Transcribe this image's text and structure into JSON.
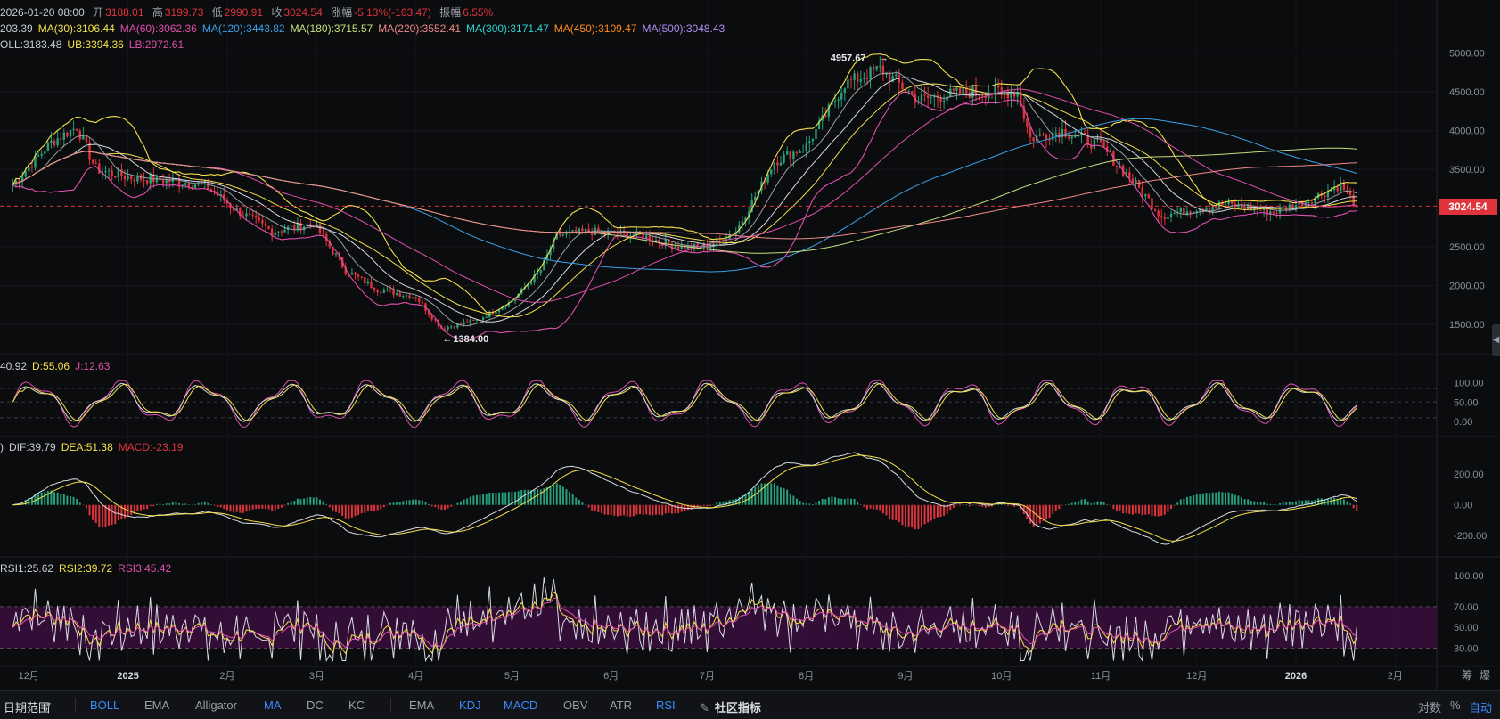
{
  "header": {
    "date": "2026-01-20 08:00",
    "open_label": "开",
    "open": "3188.01",
    "high_label": "高",
    "high": "3199.73",
    "low_label": "低",
    "low": "2990.91",
    "close_label": "收",
    "close": "3024.54",
    "change_label": "涨幅",
    "change": "-5.13%(-163.47)",
    "amp_label": "振幅",
    "amp": "6.55%"
  },
  "ma_legend": [
    {
      "text": "203.39",
      "color": "#c9ccd1"
    },
    {
      "text": "MA(30):3106.44",
      "color": "#f5e14b"
    },
    {
      "text": "MA(60):3062.36",
      "color": "#e04fae"
    },
    {
      "text": "MA(120):3443.82",
      "color": "#3aa0e8"
    },
    {
      "text": "MA(180):3715.57",
      "color": "#c8e07a"
    },
    {
      "text": "MA(220):3552.41",
      "color": "#f08a8a"
    },
    {
      "text": "MA(300):3171.47",
      "color": "#2ed3d3"
    },
    {
      "text": "MA(450):3109.47",
      "color": "#ff8c1a"
    },
    {
      "text": "MA(500):3048.43",
      "color": "#b48cf0"
    }
  ],
  "boll_legend": [
    {
      "text": "OLL:3183.48",
      "color": "#c9ccd1"
    },
    {
      "text": "UB:3394.36",
      "color": "#f5e14b"
    },
    {
      "text": "LB:2972.61",
      "color": "#e04fae"
    }
  ],
  "kdj_legend": [
    {
      "text": "40.92",
      "color": "#c9ccd1"
    },
    {
      "text": "D:55.06",
      "color": "#f5e14b"
    },
    {
      "text": "J:12.63",
      "color": "#e04fae"
    }
  ],
  "macd_legend": [
    {
      "text": ")",
      "color": "#c9ccd1"
    },
    {
      "text": "DIF:39.79",
      "color": "#c9ccd1"
    },
    {
      "text": "DEA:51.38",
      "color": "#f5e14b"
    },
    {
      "text": "MACD:-23.19",
      "color": "#e0343c"
    }
  ],
  "rsi_legend": [
    {
      "text": "RSI1:25.62",
      "color": "#c9ccd1"
    },
    {
      "text": "RSI2:39.72",
      "color": "#f5e14b"
    },
    {
      "text": "RSI3:45.42",
      "color": "#e04fae"
    }
  ],
  "last_price_tag": "3024.54",
  "annotations": {
    "high": "4957.67",
    "low": "1384.00"
  },
  "x_axis_labels": [
    "12月",
    "2025",
    "2月",
    "3月",
    "4月",
    "5月",
    "6月",
    "7月",
    "8月",
    "9月",
    "10月",
    "11月",
    "12月",
    "2026",
    "2月"
  ],
  "price_ticks": [
    "5000.00",
    "4500.00",
    "4000.00",
    "3500.00",
    "2500.00",
    "2000.00",
    "1500.00"
  ],
  "kdj_ticks": [
    "100.00",
    "50.00",
    "0.00"
  ],
  "macd_ticks": [
    "200.00",
    "0.00",
    "-200.00"
  ],
  "rsi_ticks": [
    "100.00",
    "70.00",
    "50.00",
    "30.00"
  ],
  "toolbar": {
    "range_label": "日期范围",
    "left_items": [
      {
        "label": "BOLL",
        "active": true
      },
      {
        "label": "EMA",
        "active": false
      },
      {
        "label": "Alligator",
        "active": false
      },
      {
        "label": "MA",
        "active": true
      },
      {
        "label": "DC",
        "active": false
      },
      {
        "label": "KC",
        "active": false
      }
    ],
    "right_items": [
      {
        "label": "EMA",
        "active": false
      },
      {
        "label": "KDJ",
        "active": true
      },
      {
        "label": "MACD",
        "active": true
      },
      {
        "label": "OBV",
        "active": false
      },
      {
        "label": "ATR",
        "active": false
      },
      {
        "label": "RSI",
        "active": true
      }
    ],
    "community_label": "社区指标",
    "right_corner": [
      "对数",
      "%",
      "自动"
    ],
    "axis_corner": [
      "筹",
      "爆"
    ]
  },
  "colors": {
    "up": "#26a17b",
    "down": "#e0343c",
    "white": "#d8dbe0",
    "yellow": "#f5e14b",
    "magenta": "#e04fae",
    "blue": "#3aa0e8",
    "lime": "#c8e07a",
    "salmon": "#f08a8a",
    "rsi_band": "#3a0f3e"
  },
  "chart_data": {
    "type": "candlestick",
    "title": "",
    "x_labels": [
      "12月",
      "2025",
      "2月",
      "3月",
      "4月",
      "5月",
      "6月",
      "7月",
      "8月",
      "9月",
      "10月",
      "11月",
      "12月",
      "2026",
      "2月"
    ],
    "price_range": [
      1200,
      5250
    ],
    "close_path": [
      [
        "2024-11-26",
        3300
      ],
      [
        "2024-12-08",
        3850
      ],
      [
        "2024-12-16",
        4050
      ],
      [
        "2024-12-22",
        3500
      ],
      [
        "2025-01-01",
        3400
      ],
      [
        "2025-01-15",
        3350
      ],
      [
        "2025-01-25",
        3300
      ],
      [
        "2025-02-03",
        3000
      ],
      [
        "2025-02-15",
        2700
      ],
      [
        "2025-02-28",
        2800
      ],
      [
        "2025-03-10",
        2200
      ],
      [
        "2025-03-20",
        1950
      ],
      [
        "2025-04-01",
        1850
      ],
      [
        "2025-04-09",
        1450
      ],
      [
        "2025-04-20",
        1550
      ],
      [
        "2025-05-01",
        1800
      ],
      [
        "2025-05-10",
        2200
      ],
      [
        "2025-05-15",
        2650
      ],
      [
        "2025-05-25",
        2700
      ],
      [
        "2025-06-10",
        2650
      ],
      [
        "2025-06-22",
        2500
      ],
      [
        "2025-07-01",
        2500
      ],
      [
        "2025-07-10",
        2700
      ],
      [
        "2025-07-22",
        3600
      ],
      [
        "2025-08-01",
        3800
      ],
      [
        "2025-08-13",
        4600
      ],
      [
        "2025-08-24",
        4800
      ],
      [
        "2025-09-05",
        4400
      ],
      [
        "2025-09-20",
        4500
      ],
      [
        "2025-10-06",
        4500
      ],
      [
        "2025-10-10",
        3900
      ],
      [
        "2025-10-20",
        4000
      ],
      [
        "2025-11-01",
        3800
      ],
      [
        "2025-11-10",
        3400
      ],
      [
        "2025-11-20",
        2900
      ],
      [
        "2025-12-01",
        3000
      ],
      [
        "2025-12-10",
        3050
      ],
      [
        "2025-12-25",
        2950
      ],
      [
        "2026-01-05",
        3100
      ],
      [
        "2026-01-15",
        3300
      ],
      [
        "2026-01-20",
        3024.54
      ]
    ],
    "annotated_high": 4957.67,
    "annotated_low": 1384.0,
    "last_close": 3024.54,
    "ma_last_values": {
      "MA30": 3106.44,
      "MA60": 3062.36,
      "MA120": 3443.82,
      "MA180": 3715.57,
      "MA220": 3552.41,
      "MA300": 3171.47,
      "MA450": 3109.47,
      "MA500": 3048.43
    },
    "boll": {
      "mid": 3183.48,
      "ub": 3394.36,
      "lb": 2972.61
    },
    "kdj": {
      "D": 55.06,
      "J": 12.63,
      "range": [
        -20,
        110
      ]
    },
    "macd": {
      "DIF": 39.79,
      "DEA": 51.38,
      "MACD": -23.19,
      "range": [
        -280,
        300
      ]
    },
    "rsi": {
      "RSI1": 25.62,
      "RSI2": 39.72,
      "RSI3": 45.42,
      "range": [
        15,
        105
      ],
      "band": [
        30,
        70
      ]
    }
  }
}
